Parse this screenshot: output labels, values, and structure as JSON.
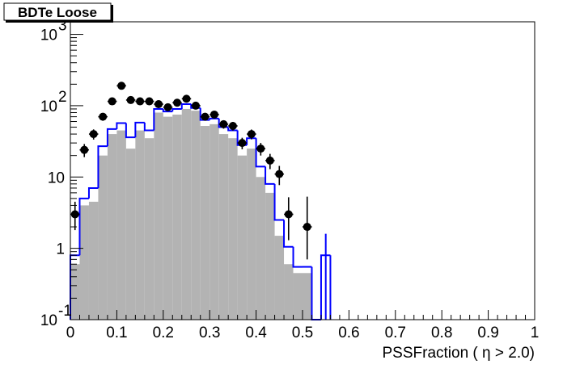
{
  "chart_data": {
    "type": "histogram",
    "title": "BDTe Loose",
    "xlabel": "PSSFraction ( η > 2.0)",
    "ylabel": "",
    "xlim": [
      0,
      1
    ],
    "ylim": [
      0.1,
      1500
    ],
    "log_y": true,
    "grid": false,
    "x_ticks": [
      "0",
      "0.1",
      "0.2",
      "0.3",
      "0.4",
      "0.5",
      "0.6",
      "0.7",
      "0.8",
      "0.9",
      "1"
    ],
    "y_ticks": [
      {
        "value": 0.1,
        "base": "10",
        "exp": "-1"
      },
      {
        "value": 1,
        "base": "1",
        "exp": ""
      },
      {
        "value": 10,
        "base": "10",
        "exp": ""
      },
      {
        "value": 100,
        "base": "10",
        "exp": "2"
      },
      {
        "value": 1000,
        "base": "10",
        "exp": "3"
      }
    ],
    "bin_width": 0.02,
    "colors": {
      "filled": "#b3b3b3",
      "outline": "#0000ff",
      "data": "#000000"
    },
    "series": [
      {
        "kind": "filled-histogram",
        "x": [
          0.01,
          0.03,
          0.05,
          0.07,
          0.09,
          0.11,
          0.13,
          0.15,
          0.17,
          0.19,
          0.21,
          0.23,
          0.25,
          0.27,
          0.29,
          0.31,
          0.33,
          0.35,
          0.37,
          0.39,
          0.41,
          0.43,
          0.45,
          0.47,
          0.49,
          0.51,
          0.53,
          0.55
        ],
        "values": [
          0.6,
          4,
          4.5,
          20,
          40,
          45,
          25,
          45,
          35,
          80,
          70,
          75,
          90,
          85,
          52,
          55,
          40,
          35,
          20,
          25,
          10,
          6,
          1.5,
          0.6,
          0.45,
          0.45,
          0.1,
          0.1
        ]
      },
      {
        "kind": "outline-histogram",
        "x": [
          0.01,
          0.03,
          0.05,
          0.07,
          0.09,
          0.11,
          0.13,
          0.15,
          0.17,
          0.19,
          0.21,
          0.23,
          0.25,
          0.27,
          0.29,
          0.31,
          0.33,
          0.35,
          0.37,
          0.39,
          0.41,
          0.43,
          0.45,
          0.47,
          0.49,
          0.51,
          0.53,
          0.55
        ],
        "values": [
          0.8,
          5,
          7,
          27,
          47,
          57,
          36,
          58,
          45,
          90,
          83,
          90,
          105,
          93,
          63,
          66,
          50,
          45,
          28,
          35,
          14,
          8,
          2.5,
          1.05,
          0.55,
          0.55,
          0.1,
          0.8
        ]
      },
      {
        "kind": "data-points",
        "x": [
          0.01,
          0.03,
          0.05,
          0.07,
          0.09,
          0.11,
          0.13,
          0.15,
          0.17,
          0.19,
          0.21,
          0.23,
          0.25,
          0.27,
          0.29,
          0.31,
          0.33,
          0.35,
          0.37,
          0.39,
          0.41,
          0.43,
          0.45,
          0.47,
          0.49,
          0.51
        ],
        "values": [
          3,
          24,
          40,
          70,
          115,
          190,
          120,
          115,
          115,
          105,
          95,
          110,
          125,
          100,
          70,
          75,
          55,
          52,
          30,
          40,
          25,
          17,
          11,
          3,
          0.1,
          2
        ],
        "err_low": [
          1.2,
          5,
          6.5,
          8.5,
          11,
          14,
          11,
          11,
          11,
          10,
          9.7,
          10.5,
          11,
          10,
          8.4,
          8.7,
          7.4,
          7.2,
          5.5,
          6.3,
          5,
          4.1,
          3.3,
          1.7,
          0,
          1.3
        ],
        "err_high": [
          1.5,
          5,
          6.5,
          8.5,
          11,
          14,
          11,
          11,
          11,
          10,
          9.7,
          10.5,
          11,
          10,
          8.4,
          8.7,
          7.4,
          7.2,
          5.5,
          6.3,
          5,
          4.1,
          3.3,
          2.2,
          0,
          3.3
        ]
      }
    ]
  }
}
